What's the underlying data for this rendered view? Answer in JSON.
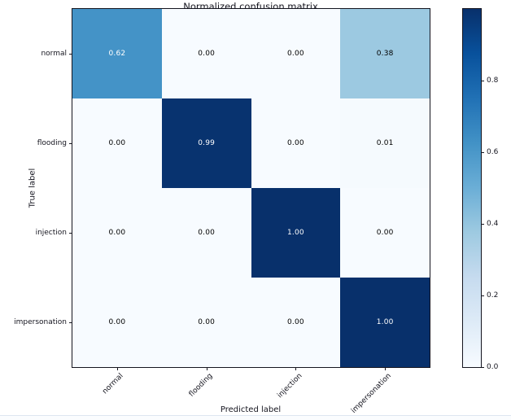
{
  "chart_data": {
    "type": "heatmap",
    "title": "Normalized confusion matrix",
    "xlabel": "Predicted label",
    "ylabel": "True label",
    "x_tick_labels": [
      "normal",
      "flooding",
      "injection",
      "impersonation"
    ],
    "y_tick_labels": [
      "normal",
      "flooding",
      "injection",
      "impersonation"
    ],
    "matrix": [
      [
        0.62,
        0.0,
        0.0,
        0.38
      ],
      [
        0.0,
        0.99,
        0.0,
        0.01
      ],
      [
        0.0,
        0.0,
        1.0,
        0.0
      ],
      [
        0.0,
        0.0,
        0.0,
        1.0
      ]
    ],
    "cell_text": [
      [
        "0.62",
        "0.00",
        "0.00",
        "0.38"
      ],
      [
        "0.00",
        "0.99",
        "0.00",
        "0.01"
      ],
      [
        "0.00",
        "0.00",
        "1.00",
        "0.00"
      ],
      [
        "0.00",
        "0.00",
        "0.00",
        "1.00"
      ]
    ],
    "value_text_threshold": 0.5,
    "value_text_color_high": "#ffffff",
    "value_text_color_low": "#000000",
    "colormap": "Blues",
    "colormap_stops": [
      {
        "v": 0.0,
        "color": "#f7fbff"
      },
      {
        "v": 0.125,
        "color": "#deebf7"
      },
      {
        "v": 0.25,
        "color": "#c6dbef"
      },
      {
        "v": 0.375,
        "color": "#9ecae1"
      },
      {
        "v": 0.5,
        "color": "#6baed6"
      },
      {
        "v": 0.625,
        "color": "#4292c6"
      },
      {
        "v": 0.75,
        "color": "#2171b5"
      },
      {
        "v": 0.875,
        "color": "#08519c"
      },
      {
        "v": 1.0,
        "color": "#08306b"
      }
    ],
    "colorbar": {
      "min": 0.0,
      "max": 1.0,
      "position": "right",
      "ticks": [
        {
          "value": 0.0,
          "label": "0.0"
        },
        {
          "value": 0.2,
          "label": "0.2"
        },
        {
          "value": 0.4,
          "label": "0.4"
        },
        {
          "value": 0.6,
          "label": "0.6"
        },
        {
          "value": 0.8,
          "label": "0.8"
        }
      ]
    },
    "grid": false,
    "legend": false
  }
}
